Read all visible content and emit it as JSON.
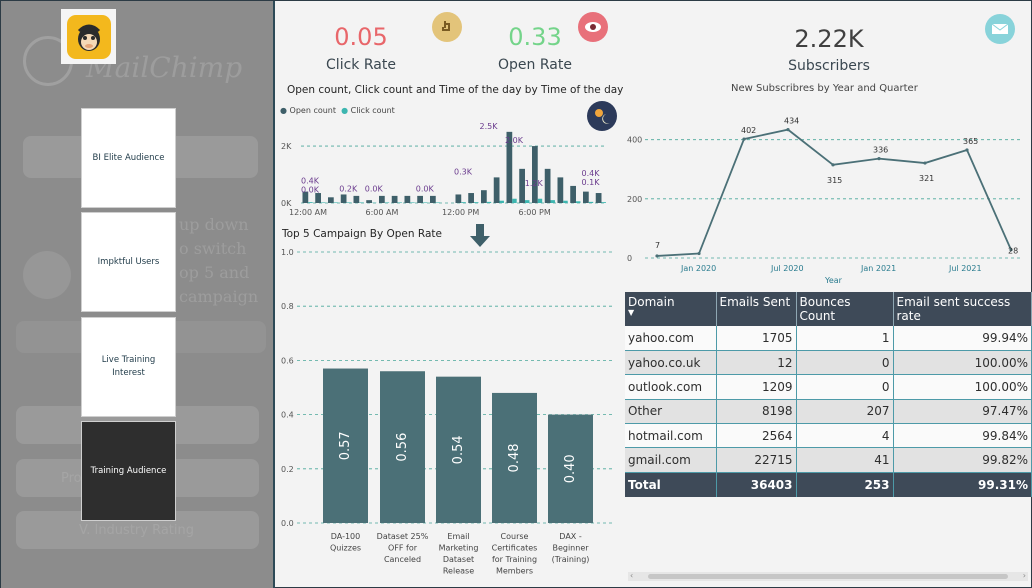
{
  "sidebar": {
    "logo_alt": "MailChimp",
    "ghost_texts": [
      "MailChimp",
      "up down",
      "o switch",
      "op 5 and",
      "campaign",
      "BI Elite Audience",
      "Profile Analyzer",
      "V. Industry Rating"
    ],
    "audiences": [
      {
        "label": "BI Elite Audience",
        "active": false
      },
      {
        "label": "Impktful Users",
        "active": false
      },
      {
        "label": "Live Training Interest",
        "active": false
      },
      {
        "label": "Training Audience",
        "active": true
      }
    ]
  },
  "kpis": {
    "click_rate": {
      "value": "0.05",
      "label": "Click Rate",
      "color": "#e8666a"
    },
    "open_rate": {
      "value": "0.33",
      "label": "Open Rate",
      "color": "#74d48a"
    },
    "subscribers": {
      "value": "2.22K",
      "label": "Subscribers",
      "color": "#404040"
    }
  },
  "open_click_chart": {
    "title": "Open count, Click count and Time of the day by Time of the day",
    "legend": [
      {
        "name": "Open count",
        "color": "#3e5f69"
      },
      {
        "name": "Click count",
        "color": "#3db6b0"
      }
    ],
    "y_ticks": [
      "2K",
      "0K"
    ],
    "x_ticks": [
      "12:00 AM",
      "6:00 AM",
      "12:00 PM",
      "6:00 PM"
    ],
    "labels": [
      "0.4K",
      "0.0K",
      "0.2K",
      "0.0K",
      "0.0K",
      "0.3K",
      "2.5K",
      "2.0K",
      "1.2K",
      "0.4K",
      "0.1K"
    ]
  },
  "campaign_chart_title": "Top 5 Campaign By Open Rate",
  "subscribers_chart_title": "New Subscribres by Year and Quarter",
  "chart_data": [
    {
      "type": "bar",
      "title": "Open count, Click count and Time of the day by Time of the day",
      "categories": [
        "0",
        "1",
        "2",
        "3",
        "4",
        "5",
        "6",
        "7",
        "8",
        "9",
        "10",
        "11",
        "12",
        "13",
        "14",
        "15",
        "16",
        "17",
        "18",
        "19",
        "20",
        "21",
        "22",
        "23"
      ],
      "series": [
        {
          "name": "Open count",
          "values": [
            400,
            350,
            200,
            300,
            250,
            100,
            250,
            250,
            250,
            250,
            250,
            0,
            300,
            350,
            450,
            900,
            2500,
            1200,
            2000,
            1200,
            900,
            600,
            400,
            350
          ]
        },
        {
          "name": "Click count",
          "values": [
            30,
            20,
            20,
            20,
            20,
            10,
            20,
            20,
            20,
            20,
            20,
            0,
            30,
            30,
            40,
            80,
            150,
            100,
            150,
            100,
            80,
            60,
            40,
            30
          ]
        }
      ],
      "xlabel": "",
      "ylabel": "",
      "ylim": [
        0,
        2600
      ]
    },
    {
      "type": "bar",
      "title": "Top 5 Campaign By Open Rate",
      "categories": [
        "DA-100 Quizzes",
        "Dataset 25% OFF for Canceled",
        "Email Marketing Dataset Release",
        "Course Certificates for Training Members",
        "DAX - Beginner (Training)"
      ],
      "values": [
        0.57,
        0.56,
        0.54,
        0.48,
        0.4
      ],
      "labels": [
        "0.57",
        "0.56",
        "0.54",
        "0.48",
        "0.40"
      ],
      "y_ticks": [
        "1.0",
        "0.8",
        "0.6",
        "0.4",
        "0.2",
        "0.0"
      ],
      "ylim": [
        0,
        1.0
      ]
    },
    {
      "type": "line",
      "title": "New Subscribres by Year and Quarter",
      "x": [
        "2019 Q4",
        "2020 Q1",
        "2020 Q2",
        "2020 Q3",
        "2020 Q4",
        "2021 Q1",
        "2021 Q2",
        "2021 Q3",
        "2021 Q4"
      ],
      "values": [
        7,
        15,
        402,
        434,
        315,
        336,
        321,
        365,
        28
      ],
      "labels": [
        "7",
        "",
        "402",
        "434",
        "315",
        "336",
        "321",
        "365",
        "28"
      ],
      "x_ticks": [
        "Jan 2020",
        "Jul 2020",
        "Jan 2021",
        "Jul 2021"
      ],
      "y_ticks": [
        "400",
        "200",
        "0"
      ],
      "xlabel": "Year",
      "ylabel": "",
      "ylim": [
        0,
        480
      ]
    }
  ],
  "table": {
    "headers": [
      "Domain",
      "Emails Sent",
      "Bounces Count",
      "Email sent success rate"
    ],
    "rows": [
      [
        "yahoo.com",
        "1705",
        "1",
        "99.94%"
      ],
      [
        "yahoo.co.uk",
        "12",
        "0",
        "100.00%"
      ],
      [
        "outlook.com",
        "1209",
        "0",
        "100.00%"
      ],
      [
        "Other",
        "8198",
        "207",
        "97.47%"
      ],
      [
        "hotmail.com",
        "2564",
        "4",
        "99.84%"
      ],
      [
        "gmail.com",
        "22715",
        "41",
        "99.82%"
      ]
    ],
    "total": [
      "Total",
      "36403",
      "253",
      "99.31%"
    ]
  }
}
